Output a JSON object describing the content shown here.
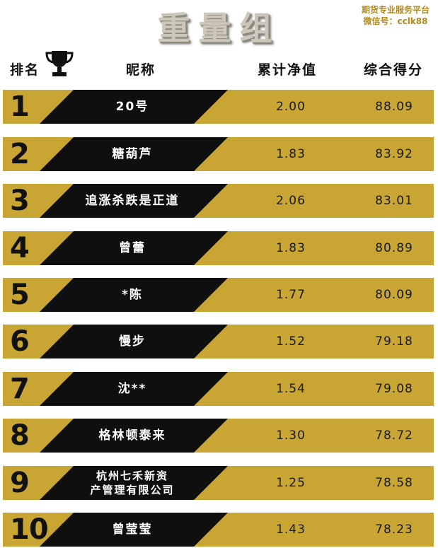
{
  "title": "重量组",
  "platform": {
    "line1": "期货专业服务平台",
    "line2": "微信号：cclk88"
  },
  "header": {
    "rank": "排名",
    "nickname": "昵称",
    "nav": "累计净值",
    "score": "综合得分"
  },
  "rows": [
    {
      "rank": "1",
      "name": "20号",
      "nav": "2.00",
      "score": "88.09"
    },
    {
      "rank": "2",
      "name": "糖葫芦",
      "nav": "1.83",
      "score": "83.92"
    },
    {
      "rank": "3",
      "name": "追涨杀跌是正道",
      "nav": "2.06",
      "score": "83.01"
    },
    {
      "rank": "4",
      "name": "曾蕾",
      "nav": "1.83",
      "score": "80.89"
    },
    {
      "rank": "5",
      "name": "*陈",
      "nav": "1.77",
      "score": "80.09"
    },
    {
      "rank": "6",
      "name": "慢步",
      "nav": "1.52",
      "score": "79.18"
    },
    {
      "rank": "7",
      "name": "沈**",
      "nav": "1.54",
      "score": "79.08"
    },
    {
      "rank": "8",
      "name": "格林顿泰来",
      "nav": "1.30",
      "score": "78.72"
    },
    {
      "rank": "9",
      "name": "杭州七禾新资产管理有限公司",
      "nav": "1.25",
      "score": "78.58"
    },
    {
      "rank": "10",
      "name": "曾莹莹",
      "nav": "1.43",
      "score": "78.23"
    }
  ],
  "colors": {
    "gold": "#c9a634",
    "band": "#0f0f0f"
  },
  "icons": {
    "trophy": "trophy-icon"
  }
}
